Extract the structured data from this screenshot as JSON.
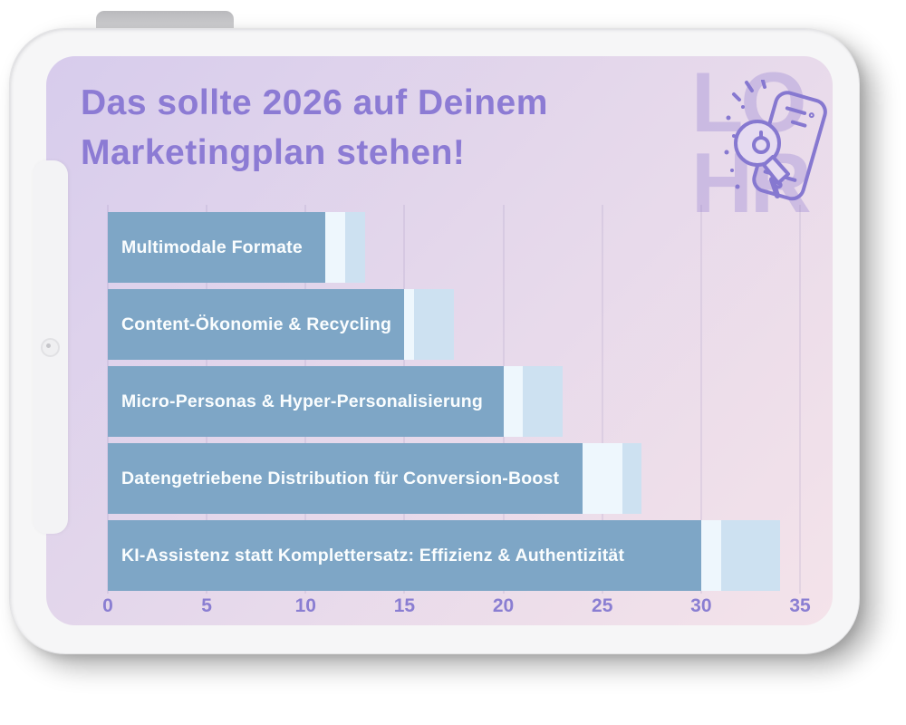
{
  "header": {
    "title_line1": "Das sollte 2026 auf Deinem",
    "title_line2": "Marketingplan stehen!",
    "title_color": "#8c7bd4"
  },
  "logo": {
    "text_top": "LO",
    "text_bottom": "HR",
    "icon": "megaphone-phone-icon",
    "accent_color": "#8678d0"
  },
  "chart_data": {
    "type": "bar",
    "orientation": "horizontal",
    "title": "Das sollte 2026 auf Deinem Marketingplan stehen!",
    "categories": [
      "Multimodale Formate",
      "Content-Ökonomie & Recycling",
      "Micro-Personas & Hyper-Personalisierung",
      "Datengetriebene Distribution für Conversion-Boost",
      "KI-Assistenz statt Komplettersatz: Effizienz & Authentizität"
    ],
    "series": [
      {
        "name": "primary",
        "color": "#7ea6c6",
        "values": [
          11,
          15,
          20,
          24,
          30
        ]
      },
      {
        "name": "highlight",
        "color": "#eef7fd",
        "values": [
          1,
          0.5,
          1,
          2,
          1
        ]
      },
      {
        "name": "secondary",
        "color": "#cde1f1",
        "values": [
          1,
          2,
          2,
          1,
          3
        ]
      }
    ],
    "totals": [
      13,
      17.5,
      23,
      27,
      34
    ],
    "x_ticks": [
      "0",
      "5",
      "10",
      "15",
      "20",
      "25",
      "30",
      "35"
    ],
    "xlim": [
      0,
      35
    ],
    "grid": true,
    "legend": false,
    "bar_label_color": "#fafdfe",
    "tick_color": "#8a7ed2",
    "ylabel": "",
    "xlabel": ""
  },
  "device": {
    "kind": "tablet-mockup",
    "bezel_color": "#f6f6f7",
    "screen_gradient": [
      "#d7ccec",
      "#e5d8eb",
      "#f4e3ea"
    ]
  }
}
